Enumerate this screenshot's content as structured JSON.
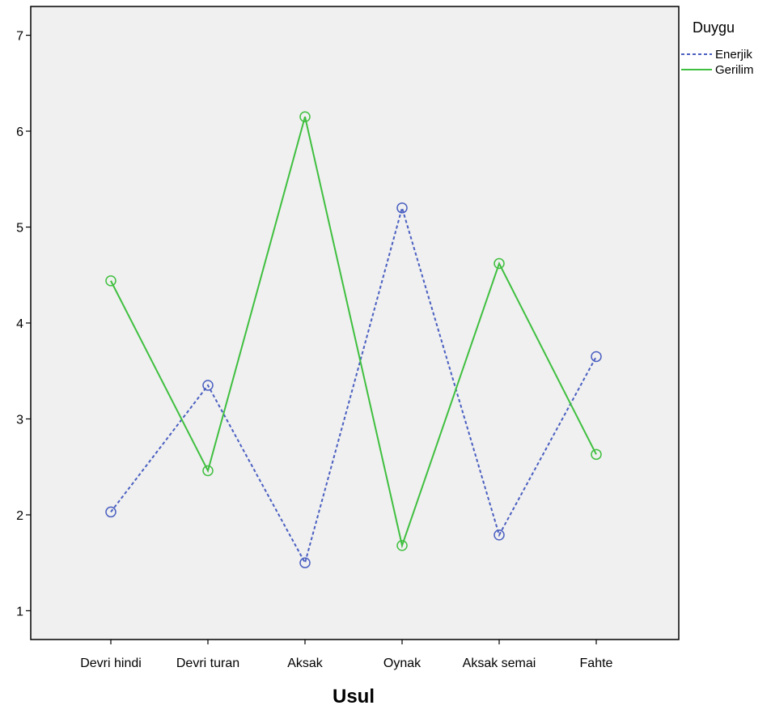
{
  "chart_data": {
    "type": "line",
    "title": "",
    "xlabel": "Usul",
    "ylabel": "",
    "categories": [
      "Devri hindi",
      "Devri turan",
      "Aksak",
      "Oynak",
      "Aksak semai",
      "Fahte"
    ],
    "ylim": [
      0.7,
      7.3
    ],
    "yticks": [
      1,
      2,
      3,
      4,
      5,
      6,
      7
    ],
    "grid": false,
    "legend": {
      "title": "Duygu",
      "placement": "right"
    },
    "series": [
      {
        "name": "Enerjik",
        "values": [
          2.03,
          3.35,
          1.5,
          5.2,
          1.79,
          3.65
        ],
        "color": "#4a5fc1",
        "style": "dashed"
      },
      {
        "name": "Gerilim",
        "values": [
          4.44,
          2.46,
          6.15,
          1.68,
          4.62,
          2.63
        ],
        "color": "#3fbf3f",
        "style": "solid"
      }
    ],
    "plot_background": "#f0f0f0"
  }
}
